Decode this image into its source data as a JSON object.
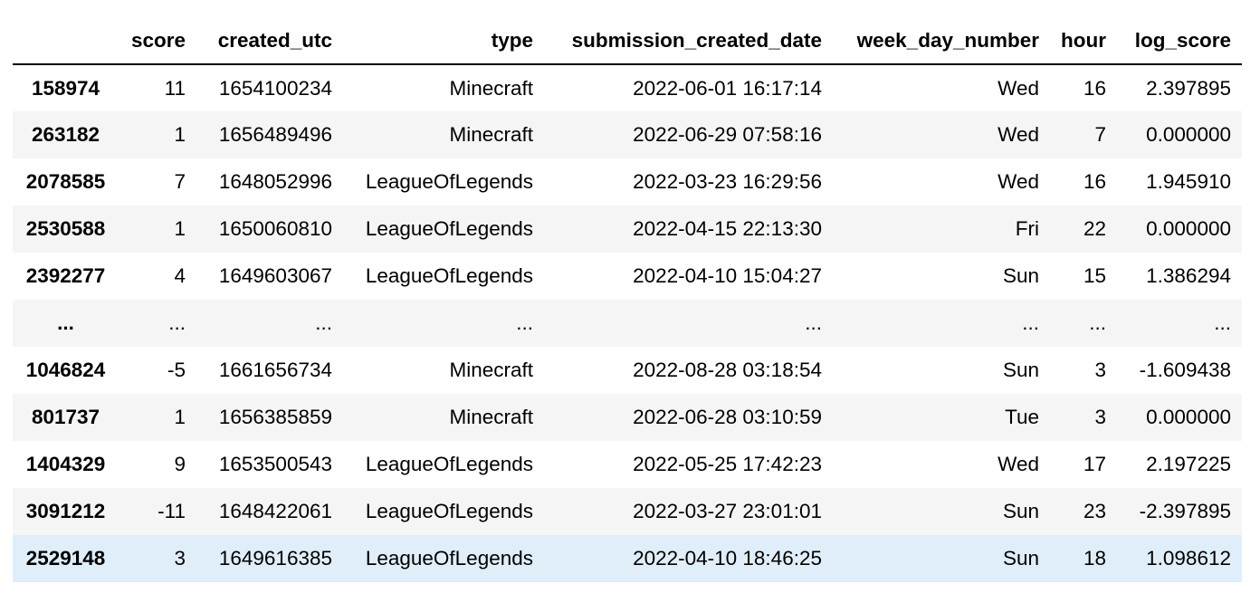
{
  "table": {
    "columns": [
      "",
      "score",
      "created_utc",
      "type",
      "submission_created_date",
      "week_day_number",
      "hour",
      "log_score"
    ],
    "rows": [
      {
        "index": "158974",
        "cells": [
          "11",
          "1654100234",
          "Minecraft",
          "2022-06-01 16:17:14",
          "Wed",
          "16",
          "2.397895"
        ]
      },
      {
        "index": "263182",
        "cells": [
          "1",
          "1656489496",
          "Minecraft",
          "2022-06-29 07:58:16",
          "Wed",
          "7",
          "0.000000"
        ]
      },
      {
        "index": "2078585",
        "cells": [
          "7",
          "1648052996",
          "LeagueOfLegends",
          "2022-03-23 16:29:56",
          "Wed",
          "16",
          "1.945910"
        ]
      },
      {
        "index": "2530588",
        "cells": [
          "1",
          "1650060810",
          "LeagueOfLegends",
          "2022-04-15 22:13:30",
          "Fri",
          "22",
          "0.000000"
        ]
      },
      {
        "index": "2392277",
        "cells": [
          "4",
          "1649603067",
          "LeagueOfLegends",
          "2022-04-10 15:04:27",
          "Sun",
          "15",
          "1.386294"
        ]
      },
      {
        "index": "...",
        "cells": [
          "...",
          "...",
          "...",
          "...",
          "...",
          "...",
          "..."
        ]
      },
      {
        "index": "1046824",
        "cells": [
          "-5",
          "1661656734",
          "Minecraft",
          "2022-08-28 03:18:54",
          "Sun",
          "3",
          "-1.609438"
        ]
      },
      {
        "index": "801737",
        "cells": [
          "1",
          "1656385859",
          "Minecraft",
          "2022-06-28 03:10:59",
          "Tue",
          "3",
          "0.000000"
        ]
      },
      {
        "index": "1404329",
        "cells": [
          "9",
          "1653500543",
          "LeagueOfLegends",
          "2022-05-25 17:42:23",
          "Wed",
          "17",
          "2.197225"
        ]
      },
      {
        "index": "3091212",
        "cells": [
          "-11",
          "1648422061",
          "LeagueOfLegends",
          "2022-03-27 23:01:01",
          "Sun",
          "23",
          "-2.397895"
        ]
      },
      {
        "index": "2529148",
        "cells": [
          "3",
          "1649616385",
          "LeagueOfLegends",
          "2022-04-10 18:46:25",
          "Sun",
          "18",
          "1.098612"
        ]
      }
    ],
    "selected_row": 10
  },
  "colors": {
    "stripe": "#f5f5f5",
    "selected": "#e0eefa",
    "header_border": "#000000"
  }
}
